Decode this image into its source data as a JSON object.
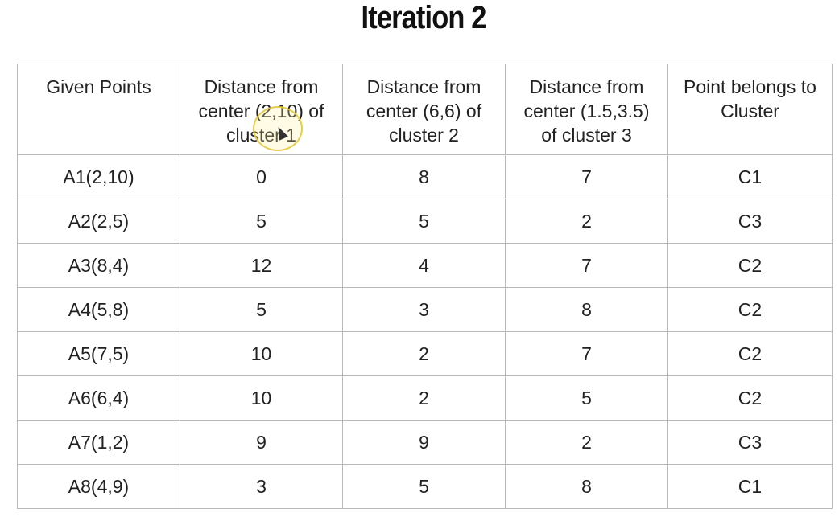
{
  "title": "Iteration 2",
  "table": {
    "headers": [
      "Given Points",
      "Distance from center (2,10) of cluster 1",
      "Distance from center (6,6) of cluster 2",
      "Distance from center (1.5,3.5) of cluster 3",
      "Point belongs to Cluster"
    ],
    "rows": [
      [
        "A1(2,10)",
        "0",
        "8",
        "7",
        "C1"
      ],
      [
        "A2(2,5)",
        "5",
        "5",
        "2",
        "C3"
      ],
      [
        "A3(8,4)",
        "12",
        "4",
        "7",
        "C2"
      ],
      [
        "A4(5,8)",
        "5",
        "3",
        "8",
        "C2"
      ],
      [
        "A5(7,5)",
        "10",
        "2",
        "7",
        "C2"
      ],
      [
        "A6(6,4)",
        "10",
        "2",
        "5",
        "C2"
      ],
      [
        "A7(1,2)",
        "9",
        "9",
        "2",
        "C3"
      ],
      [
        "A8(4,9)",
        "3",
        "5",
        "8",
        "C1"
      ]
    ]
  },
  "colors": {
    "border": "#b9b9b9",
    "text": "#222222",
    "cursor_highlight": "#e4c83c"
  }
}
